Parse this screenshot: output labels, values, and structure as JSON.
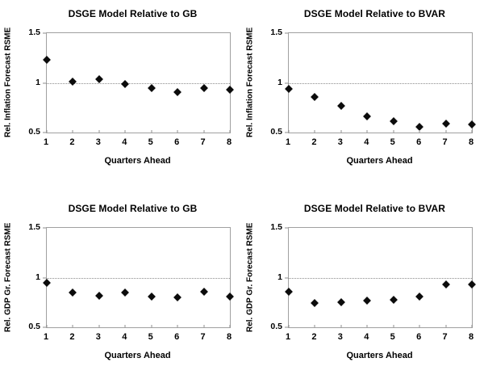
{
  "figure": {
    "background": "#ffffff",
    "marker_shape": "diamond",
    "marker_color": "#0c0c0c",
    "frame_color": "#a0a0a0",
    "gridline_style": "dotted",
    "grid_rows": 2,
    "grid_cols": 2
  },
  "chart_data": [
    {
      "type": "scatter",
      "position": "top-left",
      "title": "DSGE Model Relative to GB",
      "xlabel": "Quarters Ahead",
      "ylabel": "Rel. Inflation Forecast RSME",
      "x": [
        1,
        2,
        3,
        4,
        5,
        6,
        7,
        8
      ],
      "y": [
        1.23,
        1.01,
        1.04,
        0.99,
        0.95,
        0.91,
        0.95,
        0.93
      ],
      "ylim": [
        0.5,
        1.5
      ],
      "yticks": [
        1.5,
        1,
        0.5
      ],
      "reference_line": 1.0,
      "legend": "none",
      "grid": "reference line at y=1 only"
    },
    {
      "type": "scatter",
      "position": "top-right",
      "title": "DSGE Model Relative to BVAR",
      "xlabel": "Quarters Ahead",
      "ylabel": "Rel. Inflation Forecast RSME",
      "x": [
        1,
        2,
        3,
        4,
        5,
        6,
        7,
        8
      ],
      "y": [
        0.94,
        0.86,
        0.77,
        0.66,
        0.61,
        0.56,
        0.59,
        0.58
      ],
      "ylim": [
        0.5,
        1.5
      ],
      "yticks": [
        1.5,
        1,
        0.5
      ],
      "reference_line": 1.0,
      "legend": "none",
      "grid": "reference line at y=1 only"
    },
    {
      "type": "scatter",
      "position": "bottom-left",
      "title": "DSGE Model Relative to GB",
      "xlabel": "Quarters Ahead",
      "ylabel": "Rel. GDP Gr. Forecast RSME",
      "x": [
        1,
        2,
        3,
        4,
        5,
        6,
        7,
        8
      ],
      "y": [
        0.95,
        0.85,
        0.82,
        0.85,
        0.81,
        0.8,
        0.86,
        0.81
      ],
      "ylim": [
        0.5,
        1.5
      ],
      "yticks": [
        1.5,
        1,
        0.5
      ],
      "reference_line": 1.0,
      "legend": "none",
      "grid": "reference line at y=1 only"
    },
    {
      "type": "scatter",
      "position": "bottom-right",
      "title": "DSGE Model Relative to BVAR",
      "xlabel": "Quarters Ahead",
      "ylabel": "Rel. GDP Gr. Forecast RSME",
      "x": [
        1,
        2,
        3,
        4,
        5,
        6,
        7,
        8
      ],
      "y": [
        0.86,
        0.74,
        0.75,
        0.77,
        0.78,
        0.81,
        0.93,
        0.93
      ],
      "ylim": [
        0.5,
        1.5
      ],
      "yticks": [
        1.5,
        1,
        0.5
      ],
      "reference_line": 1.0,
      "legend": "none",
      "grid": "reference line at y=1 only"
    }
  ]
}
